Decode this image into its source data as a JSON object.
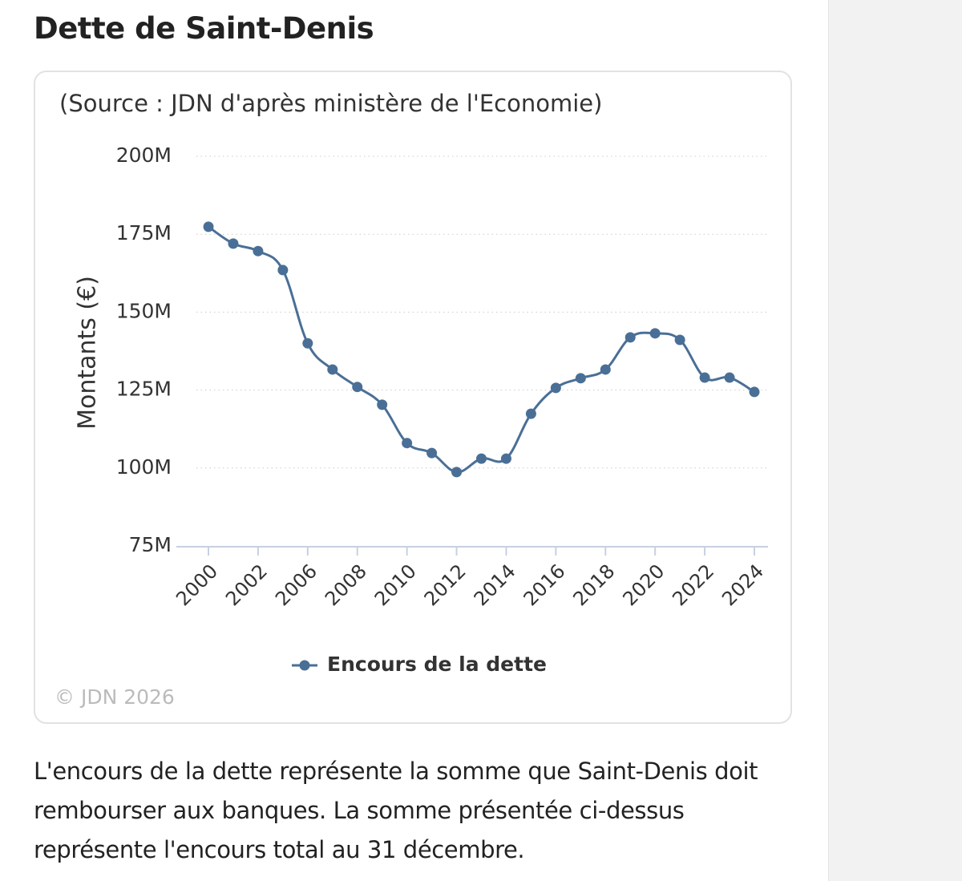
{
  "heading": "Dette de Saint-Denis",
  "description": "L'encours de la dette représente la somme que Saint-Denis doit rembourser aux banques. La somme présentée ci-dessus représente l'encours total au 31 décembre.",
  "copyright": "© JDN 2026",
  "chart_data": {
    "type": "line",
    "title": "(Source : JDN d'après ministère de l'Economie)",
    "y_label": "Montants (€)",
    "categories": [
      "2000",
      null,
      "2002",
      null,
      "2006",
      null,
      "2008",
      null,
      "2010",
      null,
      "2012",
      null,
      "2014",
      null,
      "2016",
      null,
      "2018",
      null,
      "2020",
      null,
      "2022",
      null,
      "2024"
    ],
    "series": [
      {
        "name": "Encours de la dette",
        "color": "#4a6f96",
        "values": [
          177.4,
          172,
          169.6,
          163.5,
          140,
          131.6,
          126,
          120.3,
          108,
          104.8,
          98.7,
          103,
          103,
          117.4,
          125.7,
          128.8,
          131.6,
          141.9,
          143.2,
          141.1,
          129,
          129,
          124.4
        ]
      }
    ],
    "ylim": [
      75,
      200
    ],
    "yticks": [
      {
        "value": 75,
        "label": "75M"
      },
      {
        "value": 100,
        "label": "100M"
      },
      {
        "value": 125,
        "label": "125M"
      },
      {
        "value": 150,
        "label": "150M"
      },
      {
        "value": 175,
        "label": "175M"
      },
      {
        "value": 200,
        "label": "200M"
      }
    ],
    "grid": true,
    "legend": "bottom"
  }
}
